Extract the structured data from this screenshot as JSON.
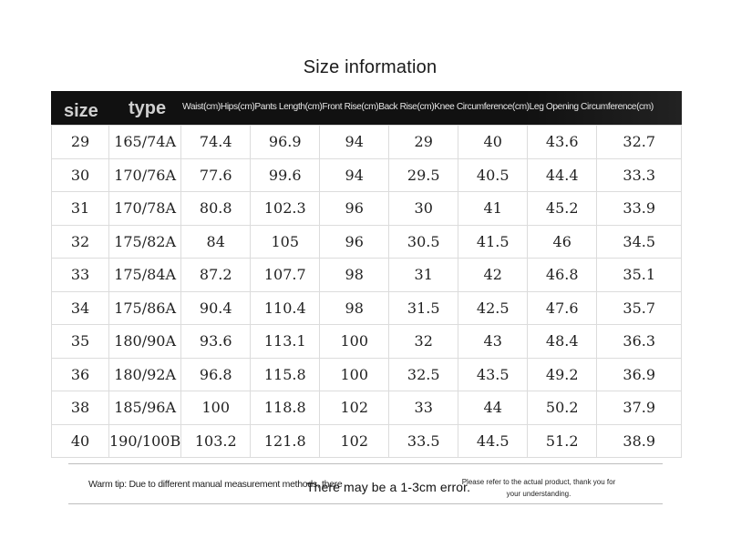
{
  "title": "Size information",
  "header": {
    "size": "size",
    "type": "type",
    "columns": [
      "Waist(cm)",
      "Hips(cm)",
      "Pants Length(cm)",
      "Front Rise(cm)",
      "Back Rise(cm)",
      "Knee Circumference(cm)",
      "Leg Opening Circumference(cm)"
    ]
  },
  "rows": [
    [
      "29",
      "165/74A",
      "74.4",
      "96.9",
      "94",
      "29",
      "40",
      "43.6",
      "32.7"
    ],
    [
      "30",
      "170/76A",
      "77.6",
      "99.6",
      "94",
      "29.5",
      "40.5",
      "44.4",
      "33.3"
    ],
    [
      "31",
      "170/78A",
      "80.8",
      "102.3",
      "96",
      "30",
      "41",
      "45.2",
      "33.9"
    ],
    [
      "32",
      "175/82A",
      "84",
      "105",
      "96",
      "30.5",
      "41.5",
      "46",
      "34.5"
    ],
    [
      "33",
      "175/84A",
      "87.2",
      "107.7",
      "98",
      "31",
      "42",
      "46.8",
      "35.1"
    ],
    [
      "34",
      "175/86A",
      "90.4",
      "110.4",
      "98",
      "31.5",
      "42.5",
      "47.6",
      "35.7"
    ],
    [
      "35",
      "180/90A",
      "93.6",
      "113.1",
      "100",
      "32",
      "43",
      "48.4",
      "36.3"
    ],
    [
      "36",
      "180/92A",
      "96.8",
      "115.8",
      "100",
      "32.5",
      "43.5",
      "49.2",
      "36.9"
    ],
    [
      "38",
      "185/96A",
      "100",
      "118.8",
      "102",
      "33",
      "44",
      "50.2",
      "37.9"
    ],
    [
      "40",
      "190/100B",
      "103.2",
      "121.8",
      "102",
      "33.5",
      "44.5",
      "51.2",
      "38.9"
    ]
  ],
  "footer": {
    "tip_left": "Warm tip: Due to different manual measurement methods, there",
    "tip_mid": "There may be a 1-3cm error.",
    "tip_right": "Please refer to the actual product, thank you for your understanding."
  }
}
